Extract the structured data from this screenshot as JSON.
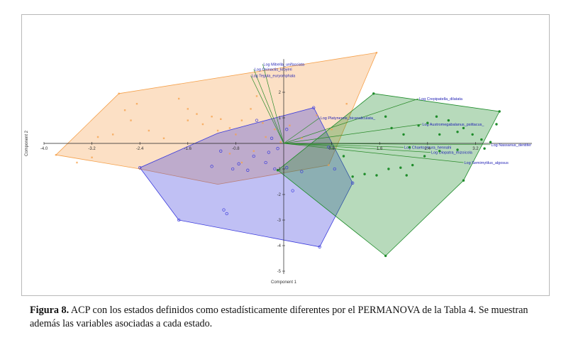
{
  "caption": {
    "label": "Figura 8.",
    "text": " ACP con los estados definidos como estadísticamente diferentes por el PERMANOVA de la Tabla 4. Se muestran además las variables asociadas a cada estado."
  },
  "chart_data": {
    "type": "scatter",
    "title": "",
    "xlabel": "Component 1",
    "ylabel": "Component 2",
    "xlim": [
      -4.0,
      4.0
    ],
    "ylim": [
      -5.0,
      3.3
    ],
    "x_ticks": [
      "-4.0",
      "-3.2",
      "-2.4",
      "-1.6",
      "-0.8",
      "0.8",
      "1.6",
      "2.4",
      "3.2"
    ],
    "x_tick_values": [
      -4.0,
      -3.2,
      -2.4,
      -1.6,
      -0.8,
      0.8,
      1.6,
      2.4,
      3.2
    ],
    "y_ticks": [
      "2",
      "1",
      "-1",
      "-2",
      "-3",
      "-4",
      "-5"
    ],
    "y_tick_values": [
      2,
      1,
      -1,
      -2,
      -3,
      -4,
      -5
    ],
    "grid": false,
    "colors": {
      "orange": "#f5a04a",
      "blue": "#3b3bdc",
      "green": "#1e8c2a",
      "loading": "#2a8a2a",
      "label": "#1f1fb4"
    },
    "groups": [
      {
        "color": "orange",
        "hull": [
          [
            -3.8,
            -0.45
          ],
          [
            -2.75,
            1.95
          ],
          [
            1.55,
            3.55
          ],
          [
            0.75,
            -0.85
          ],
          [
            -1.1,
            -1.6
          ],
          [
            -2.4,
            -1.0
          ]
        ],
        "points": [
          [
            -3.8,
            -0.45
          ],
          [
            -3.45,
            -0.75
          ],
          [
            -3.2,
            -0.55
          ],
          [
            -3.1,
            0.25
          ],
          [
            -2.85,
            0.35
          ],
          [
            -2.75,
            1.95
          ],
          [
            -2.65,
            1.3
          ],
          [
            -2.55,
            0.9
          ],
          [
            -2.45,
            1.55
          ],
          [
            -2.25,
            0.5
          ],
          [
            -2.0,
            0.2
          ],
          [
            -1.75,
            1.75
          ],
          [
            -1.6,
            1.35
          ],
          [
            -1.45,
            1.15
          ],
          [
            -1.6,
            0.9
          ],
          [
            -1.35,
            0.75
          ],
          [
            -1.2,
            1.05
          ],
          [
            -1.1,
            0.5
          ],
          [
            -1.05,
            0.95
          ],
          [
            -0.9,
            0.6
          ],
          [
            -0.8,
            0.35
          ],
          [
            -0.7,
            0.9
          ],
          [
            -0.55,
            1.35
          ],
          [
            -0.45,
            1.85
          ],
          [
            -0.35,
            0.8
          ],
          [
            -0.3,
            0.25
          ],
          [
            -0.15,
            0.55
          ],
          [
            -0.05,
            0.05
          ],
          [
            0.1,
            0.7
          ],
          [
            0.3,
            0.2
          ],
          [
            0.55,
            1.1
          ],
          [
            0.8,
            0.55
          ],
          [
            1.05,
            1.55
          ],
          [
            -2.4,
            -1.0
          ],
          [
            -0.9,
            -0.4
          ],
          [
            -0.7,
            -0.75
          ],
          [
            -0.5,
            -0.3
          ],
          [
            0.75,
            -0.85
          ],
          [
            1.55,
            3.55
          ]
        ]
      },
      {
        "color": "blue",
        "hull": [
          [
            -2.4,
            -0.95
          ],
          [
            -1.75,
            -3.0
          ],
          [
            0.6,
            -4.05
          ],
          [
            1.15,
            -1.55
          ],
          [
            0.5,
            1.4
          ],
          [
            -1.1,
            0.4
          ]
        ],
        "points": [
          [
            -2.4,
            -0.95
          ],
          [
            -1.75,
            -3.0
          ],
          [
            -1.2,
            -0.9
          ],
          [
            -1.05,
            -0.3
          ],
          [
            -1.0,
            -2.6
          ],
          [
            -0.95,
            -2.75
          ],
          [
            -0.85,
            -1.0
          ],
          [
            -0.75,
            -0.8
          ],
          [
            -0.6,
            -1.05
          ],
          [
            -0.5,
            -0.5
          ],
          [
            -0.45,
            0.9
          ],
          [
            -0.3,
            -0.75
          ],
          [
            -0.25,
            -0.35
          ],
          [
            -0.1,
            -0.2
          ],
          [
            0.05,
            0.55
          ],
          [
            0.15,
            -1.85
          ],
          [
            0.3,
            -1.1
          ],
          [
            0.5,
            1.4
          ],
          [
            0.6,
            -4.05
          ],
          [
            0.75,
            -0.15
          ],
          [
            0.85,
            -1.0
          ],
          [
            1.15,
            -1.55
          ],
          [
            -0.2,
            0.2
          ],
          [
            -0.15,
            -1.0
          ],
          [
            0.05,
            -0.95
          ]
        ]
      },
      {
        "color": "green",
        "hull": [
          [
            1.5,
            1.95
          ],
          [
            3.6,
            1.25
          ],
          [
            3.0,
            -1.45
          ],
          [
            1.7,
            -4.4
          ],
          [
            -0.1,
            -1.05
          ]
        ],
        "points": [
          [
            1.5,
            1.95
          ],
          [
            1.7,
            1.05
          ],
          [
            1.8,
            0.6
          ],
          [
            2.0,
            0.35
          ],
          [
            2.1,
            -0.15
          ],
          [
            2.25,
            0.7
          ],
          [
            2.4,
            0.8
          ],
          [
            2.55,
            1.05
          ],
          [
            2.6,
            0.35
          ],
          [
            2.75,
            0.9
          ],
          [
            2.9,
            0.45
          ],
          [
            3.0,
            0.6
          ],
          [
            3.15,
            0.35
          ],
          [
            3.3,
            0.15
          ],
          [
            3.45,
            0.05
          ],
          [
            3.55,
            0.75
          ],
          [
            3.6,
            1.25
          ],
          [
            3.0,
            -1.45
          ],
          [
            2.35,
            -0.5
          ],
          [
            2.15,
            -0.85
          ],
          [
            1.95,
            -0.95
          ],
          [
            1.75,
            -1.0
          ],
          [
            1.55,
            -1.25
          ],
          [
            1.35,
            -1.2
          ],
          [
            1.15,
            -1.3
          ],
          [
            1.7,
            -4.4
          ],
          [
            -0.1,
            -1.05
          ],
          [
            2.6,
            -0.3
          ],
          [
            2.9,
            -0.25
          ],
          [
            3.35,
            -0.2
          ],
          [
            1.0,
            -0.5
          ],
          [
            2.05,
            -1.25
          ]
        ]
      }
    ],
    "loadings": [
      {
        "label": "Log Mitrella_unifasciata",
        "x": -0.35,
        "y": 3.1
      },
      {
        "label": "Log Oxinactis_kroyeri",
        "x": -0.5,
        "y": 2.9
      },
      {
        "label": "Log Tegula_euryomphala",
        "x": -0.55,
        "y": 2.65
      },
      {
        "label": "Log Crepipatella_dilatata",
        "x": 2.25,
        "y": 1.75
      },
      {
        "label": "Log Platynereis_bicanaliculata_",
        "x": 0.6,
        "y": 1.0
      },
      {
        "label": "Log Austromegabalanus_psittacus_",
        "x": 2.3,
        "y": 0.75
      },
      {
        "label": "Log Nassarius_dentifer",
        "x": 3.45,
        "y": -0.05
      },
      {
        "label": "Log Chaetopleura_hennahi",
        "x": 2.0,
        "y": -0.15
      },
      {
        "label": "Log Diopatra_rhizoicola",
        "x": 2.45,
        "y": -0.35
      },
      {
        "label": "Log Semimytilus_algosus",
        "x": 3.0,
        "y": -0.75
      }
    ]
  }
}
